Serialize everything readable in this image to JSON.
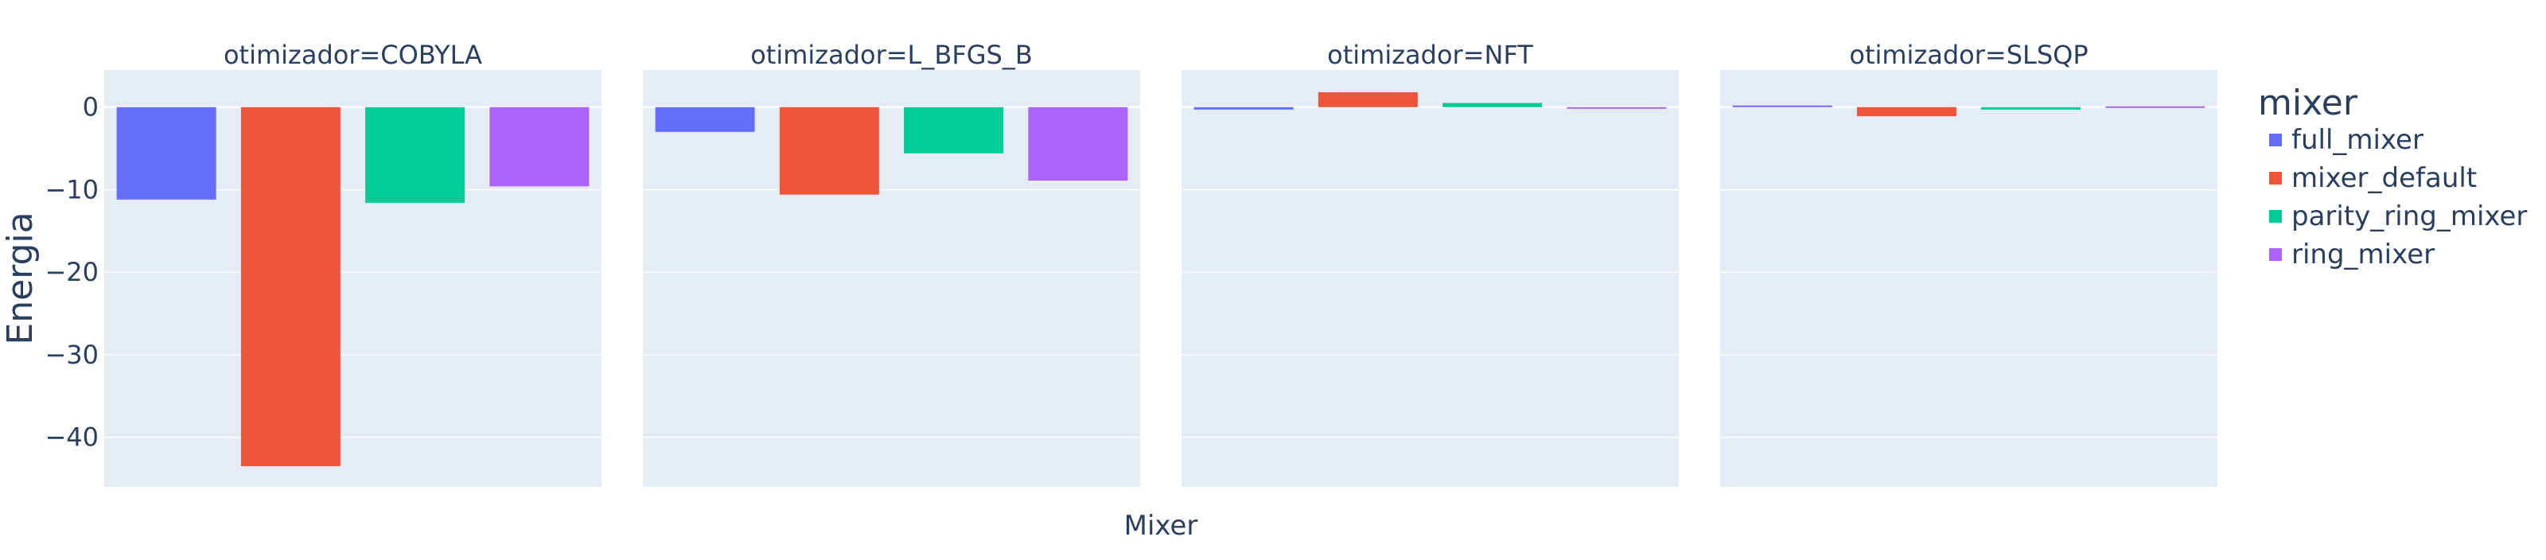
{
  "chart_data": {
    "type": "bar",
    "facet_variable": "otimizador",
    "facets": [
      {
        "title": "otimizador=COBYLA",
        "values": {
          "full_mixer": -11.2,
          "mixer_default": -43.5,
          "parity_ring_mixer": -11.6,
          "ring_mixer": -9.6
        }
      },
      {
        "title": "otimizador=L_BFGS_B",
        "values": {
          "full_mixer": -3.0,
          "mixer_default": -10.6,
          "parity_ring_mixer": -5.6,
          "ring_mixer": -8.9
        }
      },
      {
        "title": "otimizador=NFT",
        "values": {
          "full_mixer": -0.3,
          "mixer_default": 1.8,
          "parity_ring_mixer": 0.5,
          "ring_mixer": -0.1
        }
      },
      {
        "title": "otimizador=SLSQP",
        "values": {
          "full_mixer": 0.1,
          "mixer_default": -1.1,
          "parity_ring_mixer": -0.3,
          "ring_mixer": 0.0
        }
      }
    ],
    "series": [
      {
        "name": "full_mixer",
        "color": "#636efa"
      },
      {
        "name": "mixer_default",
        "color": "#ef553b"
      },
      {
        "name": "parity_ring_mixer",
        "color": "#00cc96"
      },
      {
        "name": "ring_mixer",
        "color": "#ab63fa"
      }
    ],
    "xlabel": "Mixer",
    "ylabel": "Energia",
    "ylim": [
      -46,
      4.5
    ],
    "yticks": [
      0,
      -10,
      -20,
      -30,
      -40
    ],
    "ytick_labels": [
      "0",
      "−10",
      "−20",
      "−30",
      "−40"
    ],
    "legend": {
      "title": "mixer",
      "placement": "right"
    },
    "grid": true,
    "colors": {
      "plot_background": "#e5ecf6",
      "grid": "#ffffff",
      "text": "#2a3f5f"
    }
  }
}
